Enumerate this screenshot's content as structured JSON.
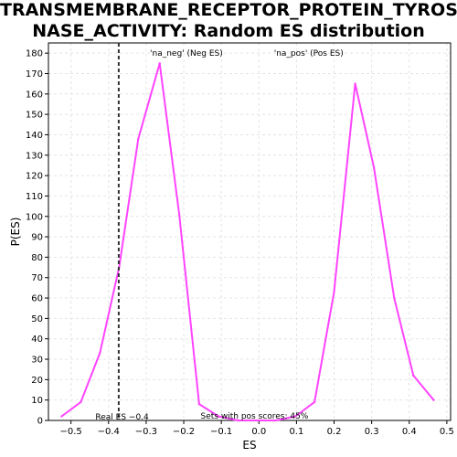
{
  "title_lines": [
    "TRANSMEMBRANE_RECEPTOR_PROTEIN_TYROSINE_KI",
    "NASE_ACTIVITY: Random ES distribution"
  ],
  "chart_data": {
    "type": "line",
    "xlabel": "ES",
    "ylabel": "P(ES)",
    "xlim": [
      -0.56,
      0.51
    ],
    "ylim": [
      0,
      185
    ],
    "xticks": [
      -0.5,
      -0.4,
      -0.3,
      -0.2,
      -0.1,
      0.0,
      0.1,
      0.2,
      0.3,
      0.4,
      0.5
    ],
    "xtick_labels": [
      "−0.5",
      "−0.4",
      "−0.3",
      "−0.2",
      "−0.1",
      "0.0",
      "0.1",
      "0.2",
      "0.3",
      "0.4",
      "0.5"
    ],
    "yticks": [
      0,
      10,
      20,
      30,
      40,
      50,
      60,
      70,
      80,
      90,
      100,
      110,
      120,
      130,
      140,
      150,
      160,
      170,
      180
    ],
    "grid": true,
    "series": [
      {
        "color": "#ff44ff",
        "x": [
          -0.525,
          -0.474,
          -0.423,
          -0.372,
          -0.321,
          -0.264,
          -0.212,
          -0.159,
          -0.108,
          -0.056,
          -0.005,
          0.046,
          0.097,
          0.148,
          0.2,
          0.256,
          0.306,
          0.36,
          0.411,
          0.465
        ],
        "y": [
          2,
          9,
          33,
          75,
          138,
          175,
          101,
          8,
          2,
          0,
          0,
          0,
          2,
          9,
          63,
          165,
          124,
          60,
          22,
          10
        ]
      }
    ],
    "real_es": -0.373,
    "real_es_label": "Real ES −0.4",
    "neg_label": "'na_neg' (Neg ES)",
    "neg_label_color": "#3333ee",
    "pos_label": "'na_pos' (Pos ES)",
    "pos_label_color": "#ee3333",
    "pos_scores_label": "Sets with pos scores: 45%"
  }
}
